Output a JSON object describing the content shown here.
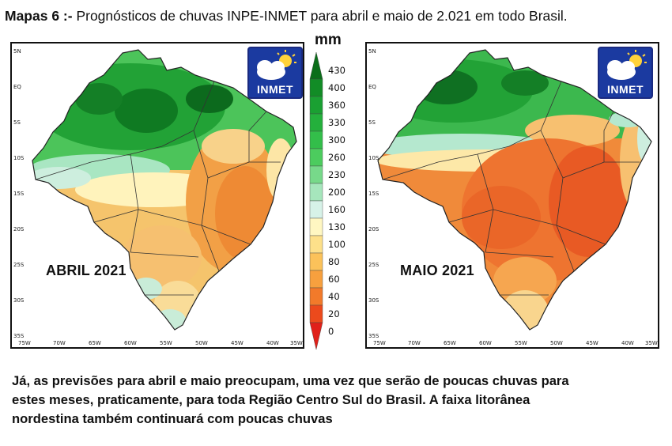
{
  "headline": {
    "prefix": "Mapas 6 :-",
    "text": " Prognósticos de chuvas INPE-INMET para abril e maio de 2.021 em todo Brasil."
  },
  "legend": {
    "unit": "mm",
    "levels": [
      "430",
      "400",
      "360",
      "330",
      "300",
      "260",
      "230",
      "200",
      "160",
      "130",
      "100",
      "80",
      "60",
      "40",
      "20",
      "0"
    ],
    "colors": [
      "#0b6e1a",
      "#128c26",
      "#1aa032",
      "#24b03c",
      "#33be4a",
      "#4ccc5e",
      "#77d98a",
      "#a6e6bc",
      "#d7f2e8",
      "#fff7c2",
      "#fde08a",
      "#fbc25a",
      "#f7a03e",
      "#f27a2a",
      "#ec4a1c",
      "#e0201a"
    ]
  },
  "maps": [
    {
      "id": "april",
      "label": "ABRIL 2021",
      "lat_labels": [
        "5N",
        "EQ",
        "5S",
        "10S",
        "15S",
        "20S",
        "25S",
        "30S",
        "35S"
      ],
      "lon_labels": [
        "75W",
        "70W",
        "65W",
        "60W",
        "55W",
        "50W",
        "45W",
        "40W",
        "35W"
      ],
      "logo_text": "INMET"
    },
    {
      "id": "may",
      "label": "MAIO 2021",
      "lat_labels": [
        "5N",
        "EQ",
        "5S",
        "10S",
        "15S",
        "20S",
        "25S",
        "30S",
        "35S"
      ],
      "lon_labels": [
        "75W",
        "70W",
        "65W",
        "60W",
        "55W",
        "50W",
        "45W",
        "40W",
        "35W"
      ],
      "logo_text": "INMET"
    }
  ],
  "body": {
    "lines": [
      "Já, as previsões para abril e maio preocupam, uma vez que serão de poucas chuvas para",
      "estes meses, praticamente, para toda Região Centro Sul do Brasil. A faixa litorânea",
      "nordestina também continuará com poucas chuvas"
    ]
  },
  "colors": {
    "wet_dark": "#0f6e22",
    "wet": "#2fb445",
    "transition": "#b8ead0",
    "dry_light": "#fde7a0",
    "dry": "#f6b35a",
    "very_dry": "#f07a30",
    "driest": "#e8471e"
  }
}
